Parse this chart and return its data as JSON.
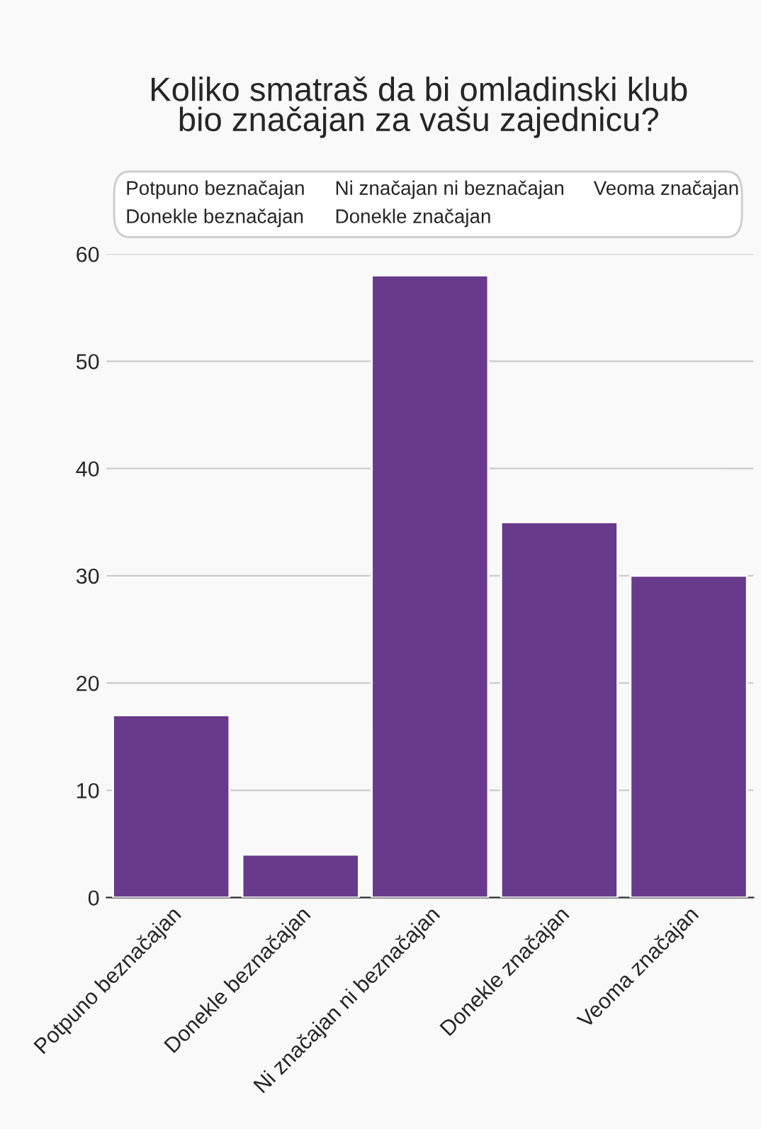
{
  "chart_data": {
    "type": "bar",
    "title": "Koliko smatraš da bi omladinski klub\nbio značajan za vašu zajednicu?",
    "categories": [
      "Potpuno beznačajan",
      "Donekle beznačajan",
      "Ni značajan ni beznačajan",
      "Donekle značajan",
      "Veoma značajan"
    ],
    "values": [
      17,
      4,
      58,
      35,
      30
    ],
    "color": "#673a8b",
    "ylim": [
      0,
      60
    ],
    "yticks": [
      0,
      10,
      20,
      30,
      40,
      50,
      60
    ],
    "grid": "y"
  }
}
